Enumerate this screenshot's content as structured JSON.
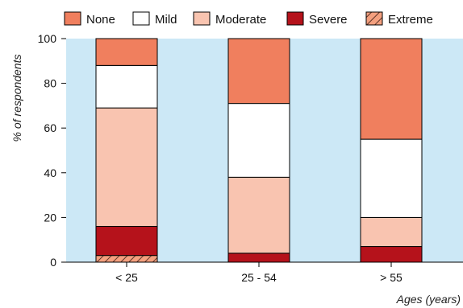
{
  "chart_data": {
    "type": "bar",
    "stacked": true,
    "categories": [
      "< 25",
      "25 - 54",
      "> 55"
    ],
    "series": [
      {
        "name": "Extreme",
        "values": [
          3,
          0,
          0
        ],
        "color": "#f4a07f",
        "pattern": "hatch"
      },
      {
        "name": "Severe",
        "values": [
          13,
          4,
          7
        ],
        "color": "#b5121b"
      },
      {
        "name": "Moderate",
        "values": [
          53,
          34,
          13
        ],
        "color": "#f9c4b0"
      },
      {
        "name": "Mild",
        "values": [
          19,
          33,
          35
        ],
        "color": "#ffffff"
      },
      {
        "name": "None",
        "values": [
          12,
          29,
          45
        ],
        "color": "#f07f5e"
      }
    ],
    "legend_order": [
      "None",
      "Mild",
      "Moderate",
      "Severe",
      "Extreme"
    ],
    "legend_position": "top",
    "ylabel": "% of respondents",
    "xlabel": "Ages (years)",
    "ylim": [
      0,
      100
    ],
    "yticks": [
      0,
      20,
      40,
      60,
      80,
      100
    ],
    "grid": false,
    "background_color": "#cce8f6"
  }
}
